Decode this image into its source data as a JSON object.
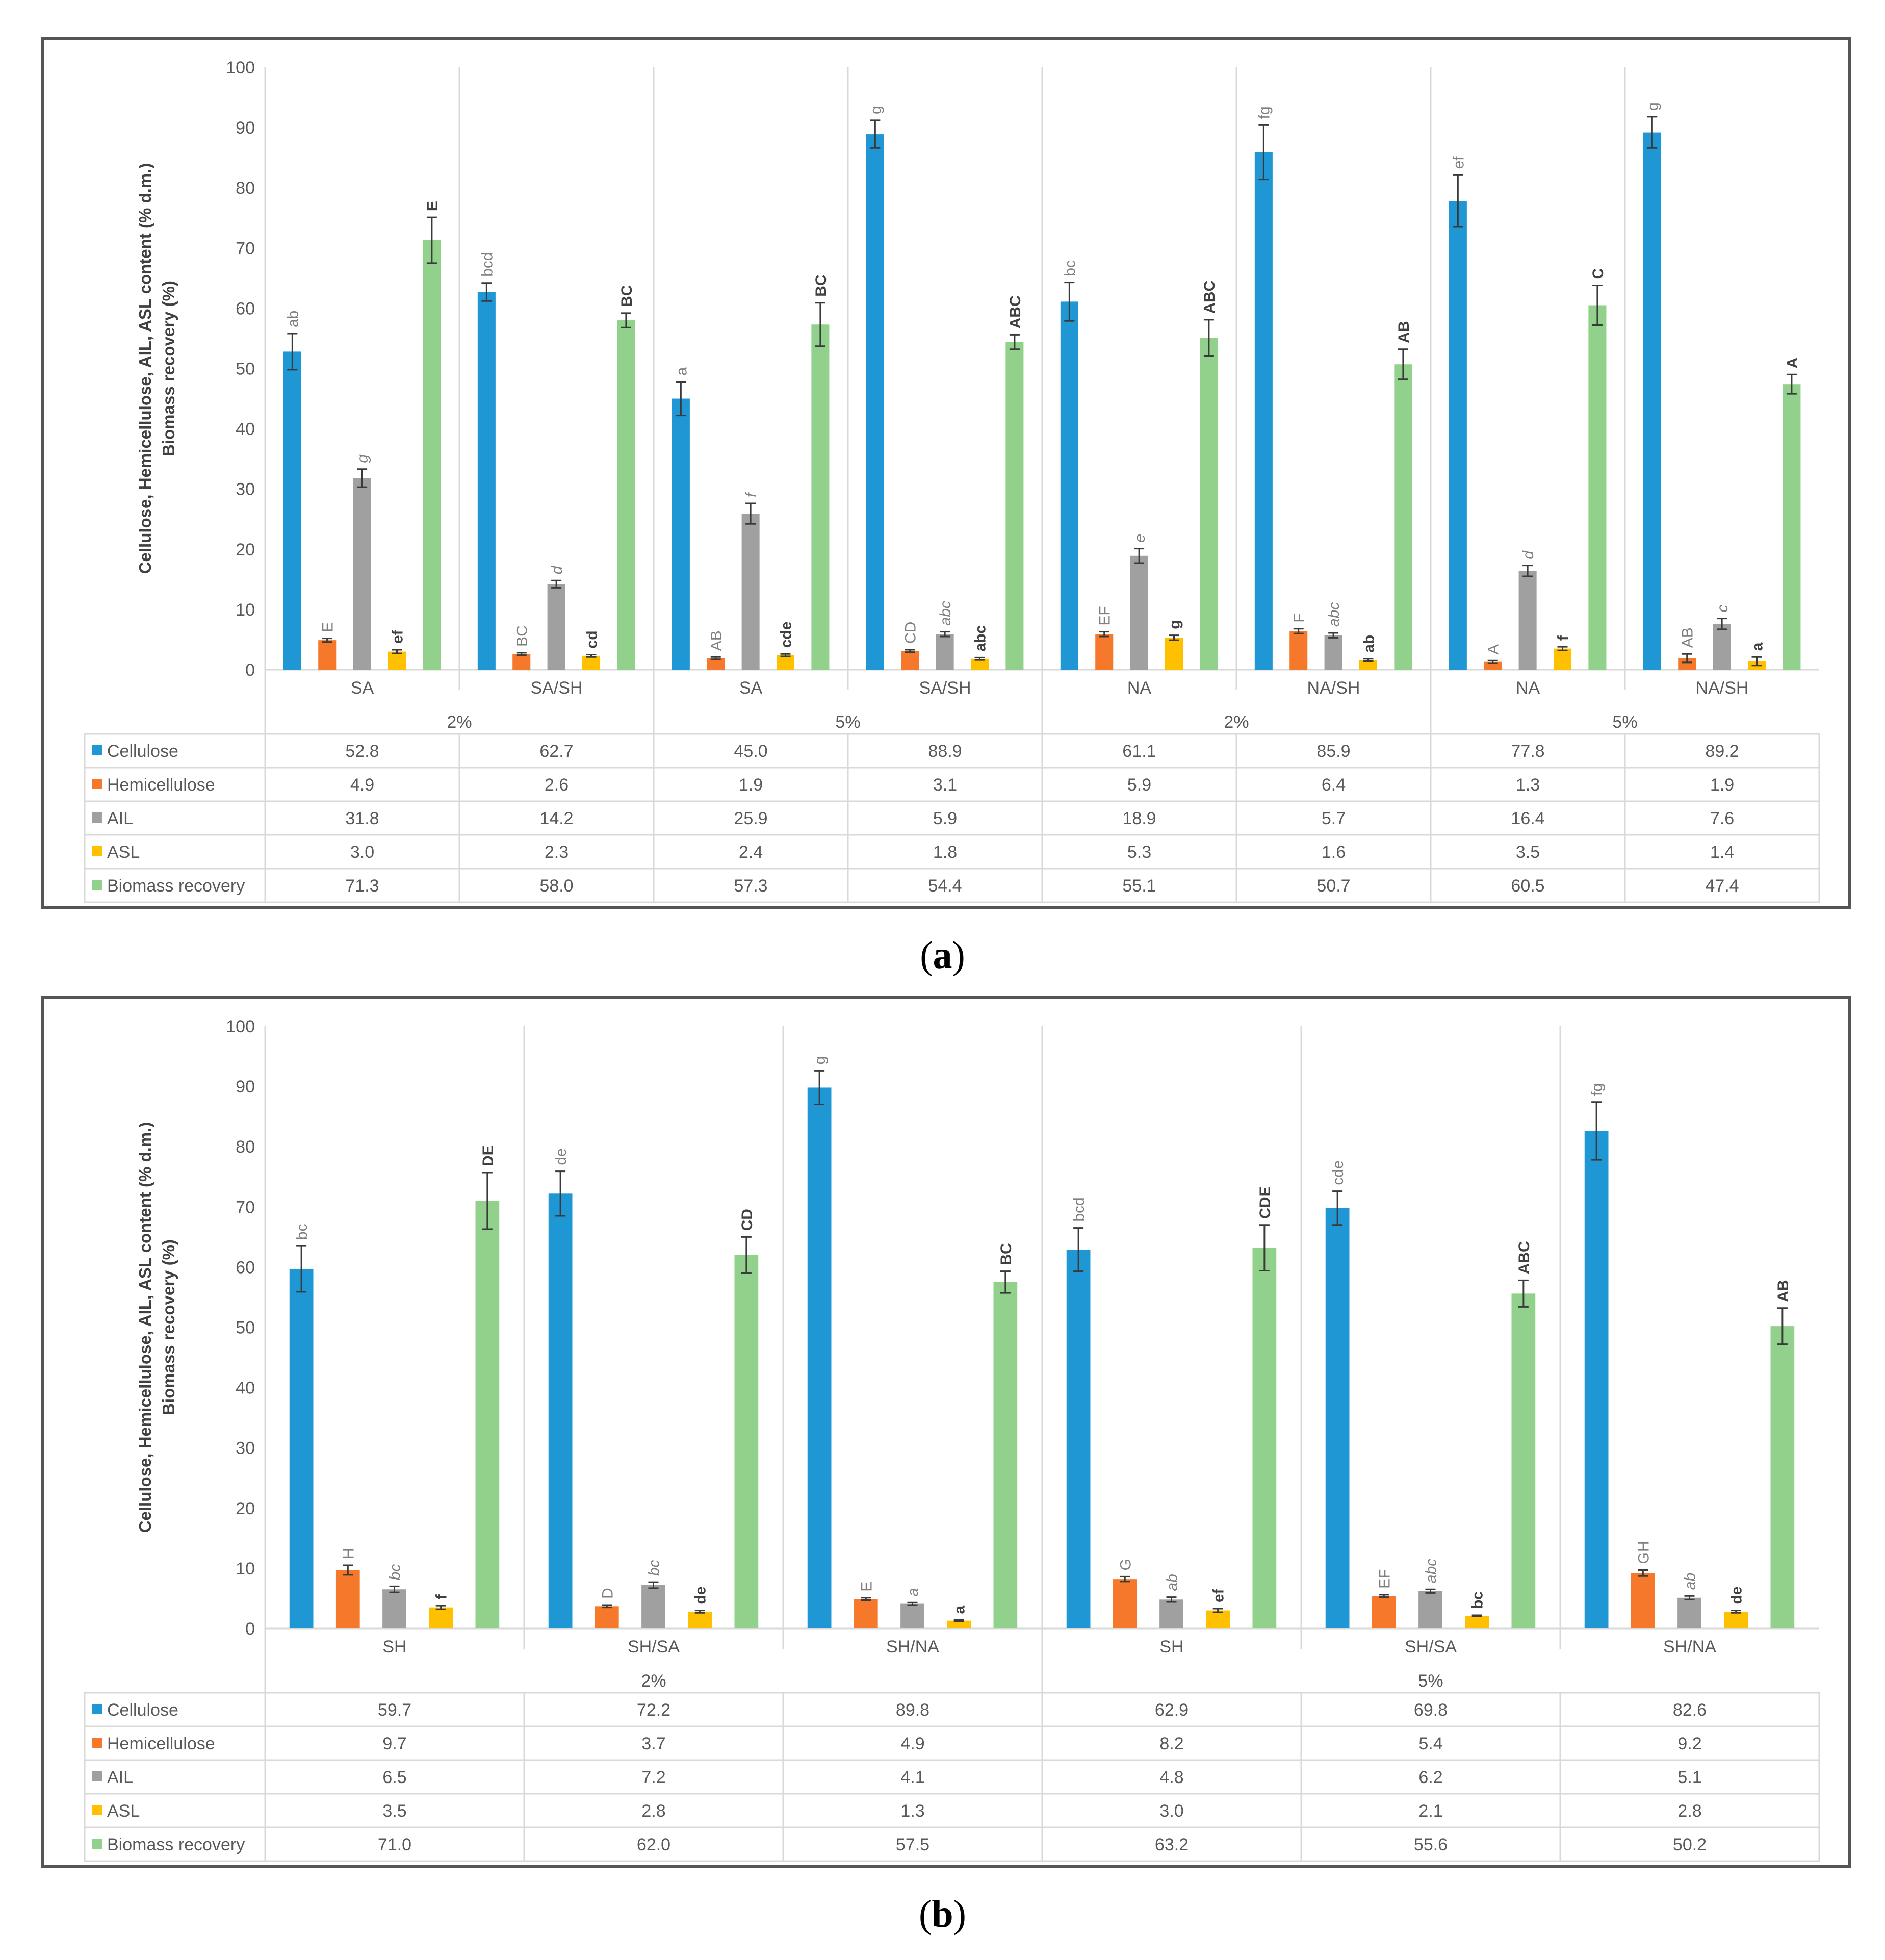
{
  "colors": {
    "Cellulose": "#1f97d4",
    "Hemicellulose": "#f6792b",
    "AIL": "#a0a0a0",
    "ASL": "#ffc000",
    "Biomass recovery": "#92d18b"
  },
  "captions": {
    "a_label": "a",
    "b_label": "b",
    "open": "(",
    "close": ")"
  },
  "chart_data": [
    {
      "id": "a",
      "type": "bar",
      "ylabel_line1": "Cellulose, Hemicellulose, AIL, ASL content (% d.m.)",
      "ylabel_line2": "Biomass recovery (%)",
      "ylim": [
        0,
        100
      ],
      "yticks": [
        "0",
        "10",
        "20",
        "30",
        "40",
        "50",
        "60",
        "70",
        "80",
        "90",
        "100"
      ],
      "categories": [
        "SA",
        "SA/SH",
        "SA",
        "SA/SH",
        "NA",
        "NA/SH",
        "NA",
        "NA/SH"
      ],
      "groups": [
        {
          "label": "2%",
          "span": [
            0,
            1
          ]
        },
        {
          "label": "5%",
          "span": [
            2,
            3
          ]
        },
        {
          "label": "2%",
          "span": [
            4,
            5
          ]
        },
        {
          "label": "5%",
          "span": [
            6,
            7
          ]
        }
      ],
      "series": [
        {
          "name": "Cellulose",
          "values": [
            52.8,
            62.7,
            45.0,
            88.9,
            61.1,
            85.9,
            77.8,
            89.2
          ],
          "display": [
            "52.8",
            "62.7",
            "45.0",
            "88.9",
            "61.1",
            "85.9",
            "77.8",
            "89.2"
          ],
          "errors": [
            3.0,
            1.5,
            2.8,
            2.3,
            3.2,
            4.5,
            4.3,
            2.6
          ],
          "letters": [
            "ab",
            "bcd",
            "a",
            "g",
            "bc",
            "fg",
            "ef",
            "g"
          ],
          "letter_style": "normal"
        },
        {
          "name": "Hemicellulose",
          "values": [
            4.9,
            2.6,
            1.9,
            3.1,
            5.9,
            6.4,
            1.3,
            1.9
          ],
          "display": [
            "4.9",
            "2.6",
            "1.9",
            "3.1",
            "5.9",
            "6.4",
            "1.3",
            "1.9"
          ],
          "errors": [
            0.3,
            0.2,
            0.2,
            0.2,
            0.4,
            0.4,
            0.2,
            0.7
          ],
          "letters": [
            "E",
            "BC",
            "AB",
            "CD",
            "EF",
            "F",
            "A",
            "AB"
          ],
          "letter_style": "normal"
        },
        {
          "name": "AIL",
          "values": [
            31.8,
            14.2,
            25.9,
            5.9,
            18.9,
            5.7,
            16.4,
            7.6
          ],
          "display": [
            "31.8",
            "14.2",
            "25.9",
            "5.9",
            "18.9",
            "5.7",
            "16.4",
            "7.6"
          ],
          "errors": [
            1.5,
            0.6,
            1.7,
            0.4,
            1.2,
            0.4,
            0.9,
            0.9
          ],
          "letters": [
            "g",
            "d",
            "f",
            "abc",
            "e",
            "abc",
            "d",
            "c"
          ],
          "letter_style": "italic"
        },
        {
          "name": "ASL",
          "values": [
            3.0,
            2.3,
            2.4,
            1.8,
            5.3,
            1.6,
            3.5,
            1.4
          ],
          "display": [
            "3.0",
            "2.3",
            "2.4",
            "1.8",
            "5.3",
            "1.6",
            "3.5",
            "1.4"
          ],
          "errors": [
            0.3,
            0.2,
            0.2,
            0.2,
            0.4,
            0.2,
            0.3,
            0.7
          ],
          "letters": [
            "ef",
            "cd",
            "cde",
            "abc",
            "g",
            "ab",
            "f",
            "a"
          ],
          "letter_style": "bold"
        },
        {
          "name": "Biomass recovery",
          "values": [
            71.3,
            58.0,
            57.3,
            54.4,
            55.1,
            50.7,
            60.5,
            47.4
          ],
          "display": [
            "71.3",
            "58.0",
            "57.3",
            "54.4",
            "55.1",
            "50.7",
            "60.5",
            "47.4"
          ],
          "errors": [
            3.8,
            1.2,
            3.6,
            1.2,
            3.0,
            2.5,
            3.3,
            1.6
          ],
          "letters": [
            "E",
            "BC",
            "BC",
            "ABC",
            "ABC",
            "AB",
            "C",
            "A"
          ],
          "letter_style": "bold"
        }
      ]
    },
    {
      "id": "b",
      "type": "bar",
      "ylabel_line1": "Cellulose, Hemicellulose, AIL, ASL content (% d.m.)",
      "ylabel_line2": "Biomass recovery (%)",
      "ylim": [
        0,
        100
      ],
      "yticks": [
        "0",
        "10",
        "20",
        "30",
        "40",
        "50",
        "60",
        "70",
        "80",
        "90",
        "100"
      ],
      "categories": [
        "SH",
        "SH/SA",
        "SH/NA",
        "SH",
        "SH/SA",
        "SH/NA"
      ],
      "groups": [
        {
          "label": "2%",
          "span": [
            0,
            2
          ]
        },
        {
          "label": "5%",
          "span": [
            3,
            5
          ]
        }
      ],
      "series": [
        {
          "name": "Cellulose",
          "values": [
            59.7,
            72.2,
            89.8,
            62.9,
            69.8,
            82.6
          ],
          "display": [
            "59.7",
            "72.2",
            "89.8",
            "62.9",
            "69.8",
            "82.6"
          ],
          "errors": [
            3.8,
            3.7,
            2.8,
            3.6,
            2.8,
            4.8
          ],
          "letters": [
            "bc",
            "de",
            "g",
            "bcd",
            "cde",
            "fg"
          ],
          "letter_style": "normal"
        },
        {
          "name": "Hemicellulose",
          "values": [
            9.7,
            3.7,
            4.9,
            8.2,
            5.4,
            9.2
          ],
          "display": [
            "9.7",
            "3.7",
            "4.9",
            "8.2",
            "5.4",
            "9.2"
          ],
          "errors": [
            0.8,
            0.2,
            0.2,
            0.4,
            0.2,
            0.5
          ],
          "letters": [
            "H",
            "D",
            "E",
            "G",
            "EF",
            "GH"
          ],
          "letter_style": "normal"
        },
        {
          "name": "AIL",
          "values": [
            6.5,
            7.2,
            4.1,
            4.8,
            6.2,
            5.1
          ],
          "display": [
            "6.5",
            "7.2",
            "4.1",
            "4.8",
            "6.2",
            "5.1"
          ],
          "errors": [
            0.5,
            0.5,
            0.2,
            0.4,
            0.3,
            0.3
          ],
          "letters": [
            "bc",
            "bc",
            "a",
            "ab",
            "abc",
            "ab"
          ],
          "letter_style": "italic"
        },
        {
          "name": "ASL",
          "values": [
            3.5,
            2.8,
            1.3,
            3.0,
            2.1,
            2.8
          ],
          "display": [
            "3.5",
            "2.8",
            "1.3",
            "3.0",
            "2.1",
            "2.8"
          ],
          "errors": [
            0.3,
            0.2,
            0.1,
            0.3,
            0.1,
            0.2
          ],
          "letters": [
            "f",
            "de",
            "a",
            "ef",
            "bc",
            "de"
          ],
          "letter_style": "bold"
        },
        {
          "name": "Biomass recovery",
          "values": [
            71.0,
            62.0,
            57.5,
            63.2,
            55.6,
            50.2
          ],
          "display": [
            "71.0",
            "62.0",
            "57.5",
            "63.2",
            "55.6",
            "50.2"
          ],
          "errors": [
            4.7,
            3.0,
            1.8,
            3.8,
            2.2,
            3.0
          ],
          "letters": [
            "DE",
            "CD",
            "BC",
            "CDE",
            "ABC",
            "AB"
          ],
          "letter_style": "bold"
        }
      ]
    }
  ]
}
